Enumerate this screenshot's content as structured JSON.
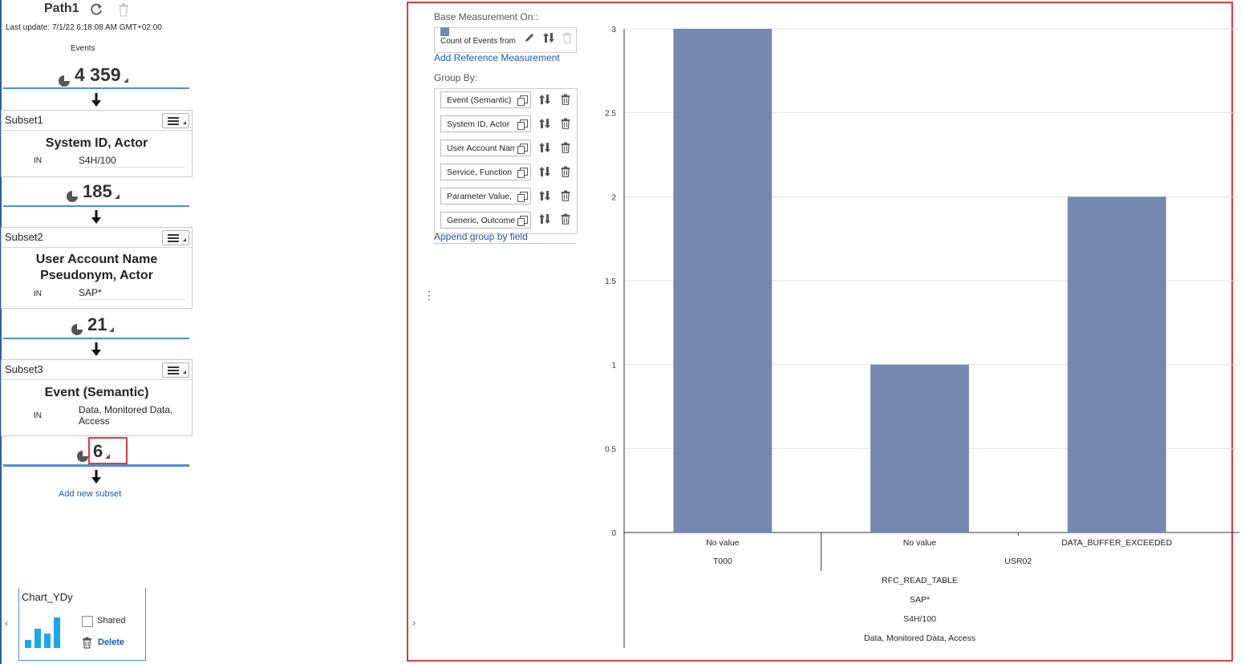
{
  "path": {
    "title": "Path1",
    "last_update": "Last update: 7/1/22 6:18:08 AM GMT+02:00",
    "events_label": "Events",
    "total_count": "4 359",
    "add_subset_label": "Add new subset"
  },
  "subsets": [
    {
      "title": "Subset1",
      "field_lines": [
        "System ID, Actor"
      ],
      "operator": "IN",
      "value_lines": [
        "S4H/100"
      ],
      "count": "185"
    },
    {
      "title": "Subset2",
      "field_lines": [
        "User Account Name",
        "Pseudonym, Actor"
      ],
      "operator": "IN",
      "value_lines": [
        "SAP*"
      ],
      "count": "21"
    },
    {
      "title": "Subset3",
      "field_lines": [
        "Event (Semantic)"
      ],
      "operator": "IN",
      "value_lines": [
        "Data, Monitored Data,",
        "Access"
      ],
      "count": "6"
    }
  ],
  "chart_tile": {
    "title": "Chart_YDy",
    "shared_label": "Shared",
    "delete_label": "Delete",
    "shared_checked": false
  },
  "config": {
    "base_label": "Base Measurement On::",
    "base_measure": "Count of Events from",
    "add_reference": "Add Reference Measurement",
    "group_by_label": "Group By:",
    "group_by_fields": [
      "Event (Semantic)",
      "System ID, Actor",
      "User Account Name",
      "Service, Function",
      "Parameter Value,",
      "Generic, Outcome"
    ],
    "append_label": "Append group by field"
  },
  "colors": {
    "bar": "#7589b0",
    "accent": "#4a90d9",
    "highlight": "#e0393e",
    "link": "#1a5aa8"
  },
  "chart_data": {
    "type": "bar",
    "title": "",
    "xlabel": "",
    "ylabel": "",
    "ylim": [
      0,
      3
    ],
    "y_ticks": [
      "0",
      "0.5",
      "1",
      "1.5",
      "2",
      "2.5",
      "3"
    ],
    "categories": [
      "No value",
      "No value",
      "DATA_BUFFER_EXCEEDED"
    ],
    "values": [
      3,
      1,
      2
    ],
    "group_levels": [
      {
        "labels": [
          "T000",
          "USR02"
        ],
        "spans": [
          1,
          2
        ]
      },
      {
        "labels": [
          "RFC_READ_TABLE"
        ],
        "spans": [
          3
        ]
      },
      {
        "labels": [
          "SAP*"
        ],
        "spans": [
          3
        ]
      },
      {
        "labels": [
          "S4H/100"
        ],
        "spans": [
          3
        ]
      },
      {
        "labels": [
          "Data, Monitored Data, Access"
        ],
        "spans": [
          3
        ]
      }
    ],
    "grid": true,
    "legend": "none"
  }
}
